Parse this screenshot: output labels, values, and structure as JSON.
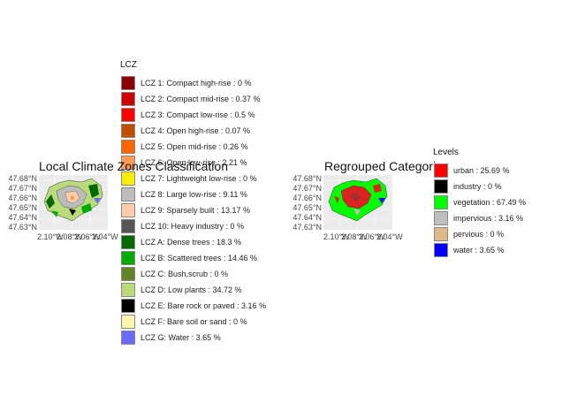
{
  "lcz_map": {
    "title": "Local Climate Zones Classification",
    "lat_ticks": [
      "47.68°N",
      "47.67°N",
      "47.66°N",
      "47.65°N",
      "47.64°N",
      "47.63°N"
    ],
    "lon_ticks": [
      "2.10°W",
      "2.08°W",
      "2.06°W",
      "2.04°W"
    ]
  },
  "lcz_legend": {
    "title": "LCZ",
    "items": [
      {
        "label": "LCZ 1: Compact high-rise :  0 %",
        "color": "#8B0000"
      },
      {
        "label": "LCZ 2: Compact mid-rise :  0.37 %",
        "color": "#CC0000"
      },
      {
        "label": "LCZ 3: Compact low-rise :  0.5 %",
        "color": "#FF0000"
      },
      {
        "label": "LCZ 4: Open high-rise :  0.07 %",
        "color": "#BF4D00"
      },
      {
        "label": "LCZ 5: Open mid-rise :  0.26 %",
        "color": "#FF6600"
      },
      {
        "label": "LCZ 6: Open low-rise :  2.21 %",
        "color": "#FF9955"
      },
      {
        "label": "LCZ 7: Lightweight low-rise :  0 %",
        "color": "#FAEE05"
      },
      {
        "label": "LCZ 8: Large low-rise :  9.11 %",
        "color": "#BCBCBC"
      },
      {
        "label": "LCZ 9: Sparsely built :  13.17 %",
        "color": "#FFCCAA"
      },
      {
        "label": "LCZ 10: Heavy industry :  0 %",
        "color": "#555555"
      },
      {
        "label": "LCZ A: Dense trees :  18.3 %",
        "color": "#006A00"
      },
      {
        "label": "LCZ B: Scattered trees :  14.46 %",
        "color": "#00AA00"
      },
      {
        "label": "LCZ C: Bush,scrub :  0 %",
        "color": "#648525"
      },
      {
        "label": "LCZ D: Low plants :  34.72 %",
        "color": "#B9DB79"
      },
      {
        "label": "LCZ E: Bare rock or paved :  3.16 %",
        "color": "#000000"
      },
      {
        "label": "LCZ F: Bare soil or sand :  0 %",
        "color": "#FBF7AE"
      },
      {
        "label": "LCZ G: Water :  3.65 %",
        "color": "#6A6AFF"
      }
    ]
  },
  "regroup_map": {
    "title": "Regrouped Categories",
    "lat_ticks": [
      "47.68°N",
      "47.67°N",
      "47.66°N",
      "47.65°N",
      "47.64°N",
      "47.63°N"
    ],
    "lon_ticks": [
      "2.10°W",
      "2.08°W",
      "2.06°W",
      "2.04°W"
    ]
  },
  "regroup_legend": {
    "title": "Levels",
    "items": [
      {
        "label": "urban :  25.69 %",
        "color": "#FF0000"
      },
      {
        "label": "industry :  0 %",
        "color": "#000000"
      },
      {
        "label": "vegetation :  67.49 %",
        "color": "#00FF00"
      },
      {
        "label": "impervious :  3.16 %",
        "color": "#BEBEBE"
      },
      {
        "label": "pervious :  0 %",
        "color": "#DEB887"
      },
      {
        "label": "water :  3.65 %",
        "color": "#0000FF"
      }
    ]
  }
}
